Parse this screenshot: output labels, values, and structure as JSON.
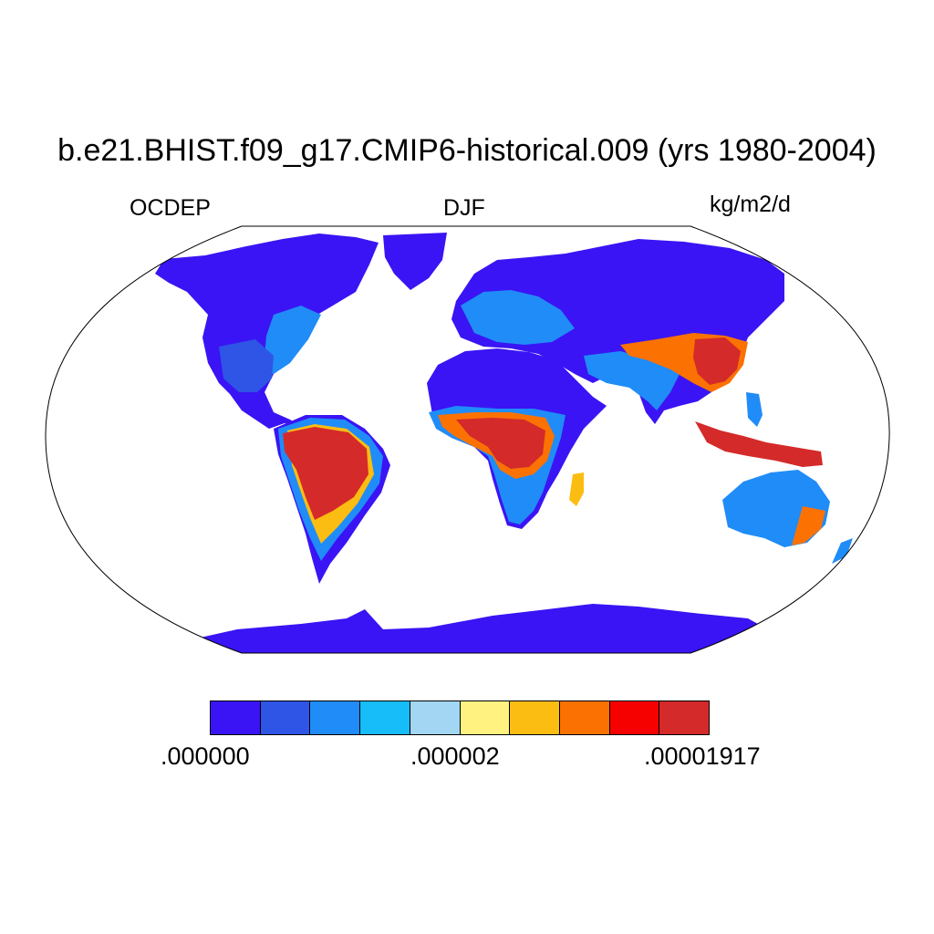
{
  "title": "b.e21.BHIST.f09_g17.CMIP6-historical.009 (yrs 1980-2004)",
  "variable": "OCDEP",
  "season": "DJF",
  "units": "kg/m2/d",
  "colorbar": {
    "colors": [
      "#3a14f4",
      "#2f55e6",
      "#208cf8",
      "#17bdf8",
      "#a3d6f2",
      "#fff280",
      "#fcbd12",
      "#fb7203",
      "#f70000",
      "#d42a2a"
    ],
    "tick_labels": [
      ".000000",
      ".000002",
      ".00001917"
    ]
  },
  "map": {
    "projection": "robinson",
    "ocean_color": "#ffffff",
    "land_base_color": "#3a14f4"
  }
}
